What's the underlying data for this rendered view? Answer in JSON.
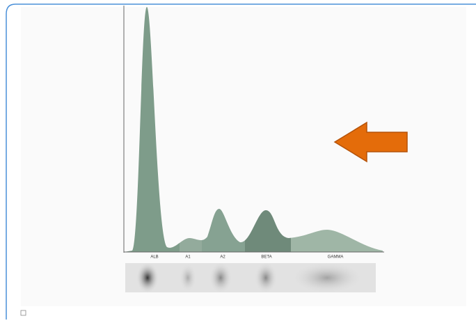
{
  "fractions": [
    {
      "label": "ALB"
    },
    {
      "label": "A1"
    },
    {
      "label": "A2"
    },
    {
      "label": "BETA"
    },
    {
      "label": "GAMMA"
    }
  ]
}
